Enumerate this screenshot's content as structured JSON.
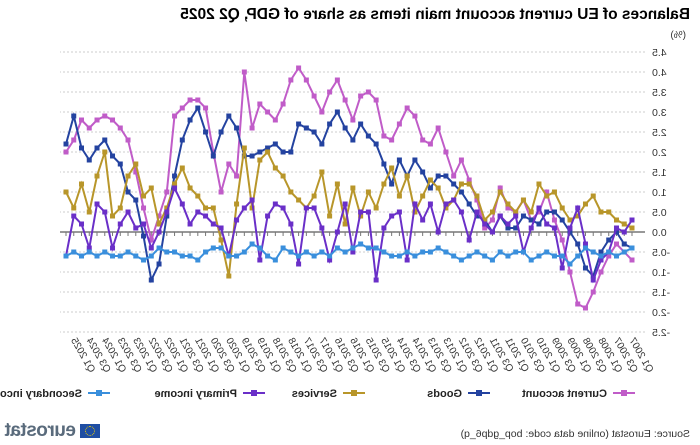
{
  "chart_data": {
    "type": "line",
    "title": "Balances of EU current account main items as share of GDP, Q2 2025",
    "unit": "(%)",
    "ylim": [
      -2.5,
      4.5
    ],
    "yticks": [
      "4.5",
      "4.0",
      "3.5",
      "3.0",
      "2.5",
      "2.0",
      "1.5",
      "1.0",
      "0.5",
      "0.0",
      "-0.5",
      "-1.0",
      "-1.5",
      "-2.0",
      "-2.5"
    ],
    "grid": true,
    "legend_position": "bottom",
    "start_year": 2007,
    "quarters": 74,
    "xtick_labels": [
      "Q1 2007",
      "Q3 2007",
      "Q1 2008",
      "Q3 2008",
      "Q1 2009",
      "Q3 2009",
      "Q1 2010",
      "Q3 2010",
      "Q1 2011",
      "Q3 2011",
      "Q1 2012",
      "Q3 2012",
      "Q1 2013",
      "Q3 2013",
      "Q1 2014",
      "Q3 2014",
      "Q1 2015",
      "Q3 2015",
      "Q1 2016",
      "Q3 2016",
      "Q1 2017",
      "Q3 2017",
      "Q1 2018",
      "Q3 2018",
      "Q1 2019",
      "Q3 2019",
      "Q1 2020",
      "Q3 2020",
      "Q1 2021",
      "Q3 2021",
      "Q1 2022",
      "Q3 2022",
      "Q1 2023",
      "Q3 2023",
      "Q1 2024",
      "Q3 2024",
      "Q1 2025"
    ],
    "series": [
      {
        "name": "Current account",
        "color": "#c05cc8",
        "values": [
          -0.7,
          -0.5,
          -0.3,
          -0.6,
          -1.0,
          -1.5,
          -1.9,
          -1.8,
          -1.0,
          -0.2,
          0.3,
          1.0,
          0.5,
          0.3,
          0.8,
          0.5,
          0.6,
          1.1,
          0.3,
          0.1,
          0.8,
          1.3,
          1.8,
          1.4,
          2.0,
          2.6,
          2.2,
          2.3,
          2.9,
          3.1,
          2.7,
          2.3,
          2.4,
          3.3,
          3.5,
          3.4,
          2.8,
          3.3,
          3.8,
          3.5,
          3.0,
          3.4,
          3.8,
          4.1,
          3.8,
          3.2,
          2.8,
          3.0,
          3.2,
          2.6,
          4.0,
          1.4,
          1.7,
          1.0,
          2.0,
          3.1,
          3.3,
          3.3,
          3.1,
          2.9,
          1.0,
          0.4,
          -0.2,
          0.6,
          1.5,
          2.3,
          2.6,
          2.8,
          2.9,
          2.8,
          2.6,
          2.8,
          2.3,
          2.0
        ]
      },
      {
        "name": "Goods",
        "color": "#2443a0",
        "values": [
          -0.4,
          -0.3,
          0.0,
          -0.2,
          -0.5,
          -1.1,
          -0.9,
          -0.3,
          0.0,
          0.3,
          0.5,
          0.5,
          0.2,
          0.3,
          0.4,
          0.1,
          0.1,
          0.4,
          0.0,
          0.3,
          0.4,
          0.7,
          1.0,
          1.2,
          1.4,
          1.4,
          1.1,
          1.5,
          1.8,
          1.4,
          1.8,
          1.2,
          1.7,
          2.2,
          2.4,
          2.7,
          2.3,
          2.6,
          3.0,
          2.7,
          2.2,
          2.5,
          2.6,
          2.7,
          2.0,
          2.0,
          2.2,
          2.1,
          2.0,
          1.9,
          1.9,
          2.6,
          2.9,
          2.5,
          1.9,
          2.5,
          3.1,
          2.8,
          2.3,
          1.4,
          0.4,
          -0.8,
          -1.2,
          -0.1,
          0.8,
          1.0,
          1.7,
          1.9,
          2.3,
          2.1,
          1.8,
          2.1,
          2.9,
          2.2
        ]
      },
      {
        "name": "Services",
        "color": "#b8962a",
        "values": [
          0.1,
          0.2,
          0.3,
          0.5,
          0.5,
          0.9,
          0.7,
          0.4,
          0.3,
          0.6,
          1.0,
          0.9,
          1.2,
          0.5,
          0.8,
          0.5,
          0.7,
          1.0,
          0.5,
          0.3,
          0.9,
          1.2,
          1.2,
          0.8,
          0.6,
          1.1,
          1.3,
          0.9,
          0.5,
          1.4,
          0.9,
          1.6,
          1.2,
          0.6,
          1.0,
          0.4,
          1.1,
          0.2,
          1.2,
          0.4,
          1.5,
          0.9,
          0.6,
          0.8,
          1.0,
          1.4,
          1.6,
          2.0,
          1.8,
          0.6,
          2.1,
          0.7,
          -1.1,
          -0.2,
          0.6,
          0.6,
          0.9,
          1.1,
          1.6,
          1.2,
          0.6,
          0.2,
          1.1,
          0.9,
          1.7,
          1.4,
          0.6,
          0.4,
          2.0,
          1.4,
          0.5,
          1.2,
          0.6,
          1.0
        ]
      },
      {
        "name": "Primary income",
        "color": "#6a2fc8",
        "values": [
          0.3,
          0.0,
          0.1,
          -0.5,
          -0.7,
          -1.2,
          -0.3,
          0.6,
          0.1,
          -0.9,
          0.1,
          0.2,
          0.6,
          0.1,
          -0.5,
          0.4,
          0.2,
          0.4,
          0.0,
          0.2,
          0.5,
          -0.2,
          0.5,
          0.8,
          0.7,
          0.0,
          0.7,
          0.3,
          0.7,
          -0.7,
          0.5,
          0.4,
          0.1,
          -1.2,
          0.5,
          0.5,
          -0.5,
          0.7,
          0.0,
          -0.7,
          0.1,
          0.6,
          0.6,
          -0.8,
          0.2,
          0.6,
          0.7,
          0.4,
          -0.7,
          0.8,
          0.6,
          0.3,
          -0.6,
          0.1,
          0.2,
          0.4,
          0.5,
          0.2,
          0.7,
          1.1,
          0.5,
          0.0,
          -0.4,
          0.2,
          0.1,
          0.5,
          0.2,
          -0.4,
          0.5,
          0.7,
          -0.4,
          0.2,
          0.4,
          -0.6
        ]
      },
      {
        "name": "Secondary income",
        "color": "#3a8fdc",
        "values": [
          -0.4,
          -0.5,
          -0.6,
          -0.5,
          -0.6,
          -0.5,
          -0.4,
          -0.6,
          -0.8,
          -0.6,
          -0.6,
          -0.5,
          -0.6,
          -0.7,
          -0.5,
          -0.5,
          -0.6,
          -0.5,
          -0.7,
          -0.6,
          -0.5,
          -0.6,
          -0.7,
          -0.6,
          -0.5,
          -0.4,
          -0.5,
          -0.5,
          -0.6,
          -0.5,
          -0.6,
          -0.6,
          -0.5,
          -0.4,
          -0.4,
          -0.3,
          -0.4,
          -0.5,
          -0.4,
          -0.6,
          -0.5,
          -0.6,
          -0.5,
          -0.6,
          -0.5,
          -0.4,
          -0.7,
          -0.6,
          -0.4,
          -0.3,
          -0.5,
          -0.6,
          -0.6,
          -0.4,
          -0.4,
          -0.5,
          -0.7,
          -0.6,
          -0.6,
          -0.5,
          -0.5,
          -0.4,
          -0.6,
          -0.7,
          -0.6,
          -0.5,
          -0.6,
          -0.6,
          -0.5,
          -0.6,
          -0.5,
          -0.6,
          -0.5,
          -0.6
        ]
      }
    ]
  },
  "footer": {
    "source": "Source: Eurostat (online data code: bop_gdp6_q)",
    "logo_text": "eurostat"
  }
}
